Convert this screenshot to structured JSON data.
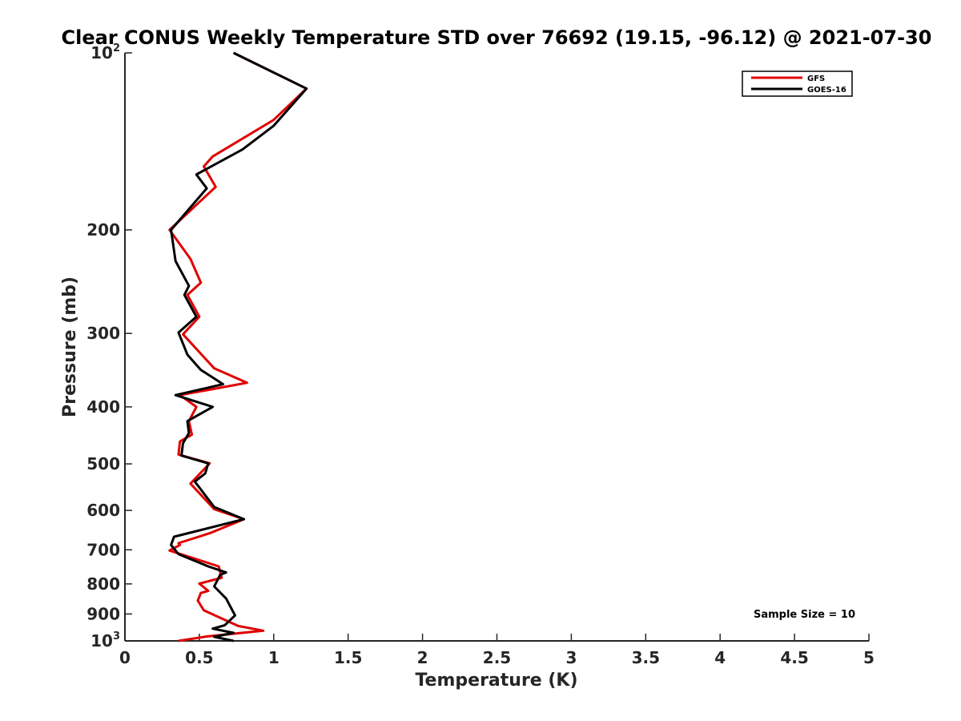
{
  "chart_data": {
    "type": "line",
    "title": "Clear CONUS Weekly Temperature STD over 76692 (19.15, -96.12) @ 2021-07-30",
    "xlabel": "Temperature (K)",
    "ylabel": "Pressure (mb)",
    "xlim": [
      0,
      5
    ],
    "ylim": [
      100,
      1000
    ],
    "y_scale": "log",
    "y_reversed": true,
    "x_ticks": [
      "0",
      "0.5",
      "1",
      "1.5",
      "2",
      "2.5",
      "3",
      "3.5",
      "4",
      "4.5",
      "5"
    ],
    "y_ticks": [
      {
        "value": 100,
        "base": "10",
        "exp": "2"
      },
      {
        "value": 200,
        "label": "200"
      },
      {
        "value": 300,
        "label": "300"
      },
      {
        "value": 400,
        "label": "400"
      },
      {
        "value": 500,
        "label": "500"
      },
      {
        "value": 600,
        "label": "600"
      },
      {
        "value": 700,
        "label": "700"
      },
      {
        "value": 800,
        "label": "800"
      },
      {
        "value": 900,
        "label": "900"
      },
      {
        "value": 1000,
        "base": "10",
        "exp": "3"
      }
    ],
    "grid": false,
    "legend_position": "top-right",
    "annotation": "Sample Size = 10",
    "series": [
      {
        "name": "GFS",
        "color": "#e00000",
        "points": [
          [
            0.73,
            100
          ],
          [
            1.22,
            115
          ],
          [
            1.0,
            130
          ],
          [
            0.59,
            150
          ],
          [
            0.53,
            156
          ],
          [
            0.61,
            169
          ],
          [
            0.3,
            200
          ],
          [
            0.44,
            224
          ],
          [
            0.51,
            246
          ],
          [
            0.42,
            258
          ],
          [
            0.5,
            281
          ],
          [
            0.39,
            301
          ],
          [
            0.6,
            344
          ],
          [
            0.82,
            364
          ],
          [
            0.37,
            382
          ],
          [
            0.48,
            400
          ],
          [
            0.43,
            423
          ],
          [
            0.45,
            446
          ],
          [
            0.37,
            458
          ],
          [
            0.36,
            482
          ],
          [
            0.57,
            499
          ],
          [
            0.44,
            540
          ],
          [
            0.6,
            597
          ],
          [
            0.8,
            621
          ],
          [
            0.57,
            656
          ],
          [
            0.36,
            682
          ],
          [
            0.37,
            687
          ],
          [
            0.3,
            702
          ],
          [
            0.63,
            747
          ],
          [
            0.65,
            781
          ],
          [
            0.5,
            799
          ],
          [
            0.56,
            822
          ],
          [
            0.51,
            829
          ],
          [
            0.49,
            854
          ],
          [
            0.53,
            887
          ],
          [
            0.68,
            923
          ],
          [
            0.76,
            943
          ],
          [
            0.93,
            961
          ],
          [
            0.55,
            983
          ],
          [
            0.36,
            1000
          ]
        ]
      },
      {
        "name": "GOES-16",
        "color": "#000000",
        "points": [
          [
            0.73,
            100
          ],
          [
            1.22,
            115
          ],
          [
            1.0,
            133
          ],
          [
            0.79,
            146
          ],
          [
            0.48,
            161
          ],
          [
            0.55,
            170
          ],
          [
            0.31,
            200
          ],
          [
            0.34,
            226
          ],
          [
            0.43,
            249
          ],
          [
            0.4,
            258
          ],
          [
            0.48,
            281
          ],
          [
            0.36,
            299
          ],
          [
            0.42,
            326
          ],
          [
            0.51,
            346
          ],
          [
            0.66,
            366
          ],
          [
            0.34,
            382
          ],
          [
            0.59,
            400
          ],
          [
            0.42,
            423
          ],
          [
            0.43,
            443
          ],
          [
            0.39,
            461
          ],
          [
            0.38,
            484
          ],
          [
            0.56,
            499
          ],
          [
            0.54,
            519
          ],
          [
            0.47,
            536
          ],
          [
            0.6,
            592
          ],
          [
            0.8,
            621
          ],
          [
            0.33,
            665
          ],
          [
            0.31,
            687
          ],
          [
            0.36,
            712
          ],
          [
            0.56,
            747
          ],
          [
            0.68,
            765
          ],
          [
            0.64,
            772
          ],
          [
            0.6,
            808
          ],
          [
            0.68,
            847
          ],
          [
            0.74,
            905
          ],
          [
            0.67,
            941
          ],
          [
            0.59,
            953
          ],
          [
            0.73,
            969
          ],
          [
            0.6,
            984
          ],
          [
            0.73,
            1000
          ]
        ]
      }
    ]
  }
}
